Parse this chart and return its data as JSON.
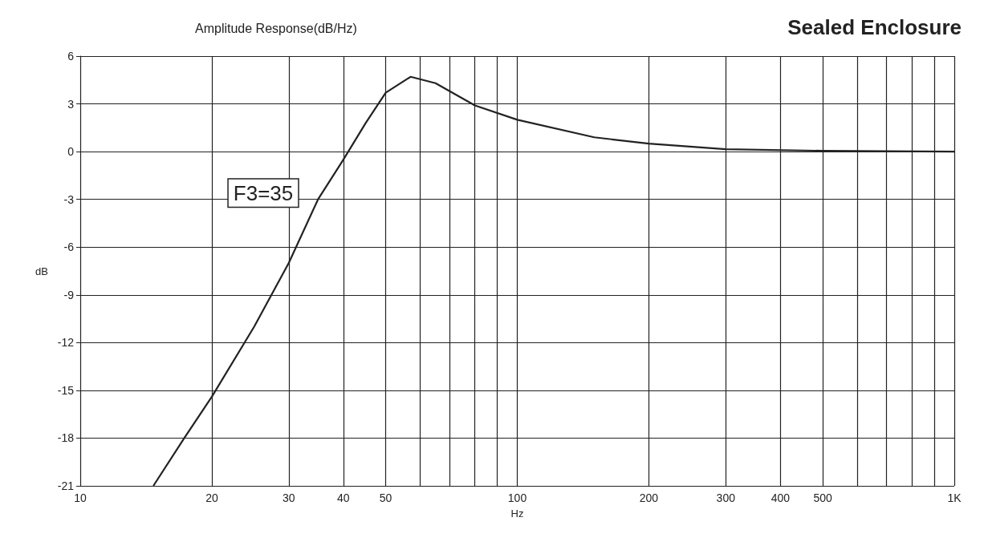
{
  "chart_data": {
    "type": "line",
    "title": "Sealed Enclosure",
    "subtitle": "Amplitude Response(dB/Hz)",
    "xlabel": "Hz",
    "ylabel": "dB",
    "log": "x",
    "grid": true,
    "marker": "none",
    "line_style": "solid",
    "xlim": [
      10,
      1000
    ],
    "ylim": [
      -21,
      6
    ],
    "xticks": [
      10,
      20,
      30,
      40,
      50,
      {
        "value": 60,
        "label": null
      },
      {
        "value": 70,
        "label": null
      },
      {
        "value": 80,
        "label": null
      },
      {
        "value": 90,
        "label": null
      },
      100,
      200,
      300,
      400,
      500,
      {
        "value": 600,
        "label": null
      },
      {
        "value": 700,
        "label": null
      },
      {
        "value": 800,
        "label": null
      },
      {
        "value": 900,
        "label": null
      },
      {
        "value": 1000,
        "label": "1K"
      }
    ],
    "yticks": [
      -21,
      -18,
      -15,
      -12,
      -9,
      -6,
      -3,
      0,
      3,
      6
    ],
    "annotations": [
      {
        "text": "F3=35",
        "x": 35,
        "y": -3
      }
    ],
    "series": [
      {
        "color": "#222222",
        "x": [
          14.7,
          17.3,
          20,
          25,
          30,
          35,
          40,
          45,
          50,
          57,
          65,
          80,
          100,
          150,
          200,
          300,
          500,
          1000
        ],
        "values": [
          -21,
          -18,
          -15.4,
          -11,
          -7,
          -3,
          -0.5,
          1.8,
          3.7,
          4.7,
          4.3,
          2.9,
          2,
          0.9,
          0.5,
          0.15,
          0.05,
          0
        ]
      }
    ]
  }
}
